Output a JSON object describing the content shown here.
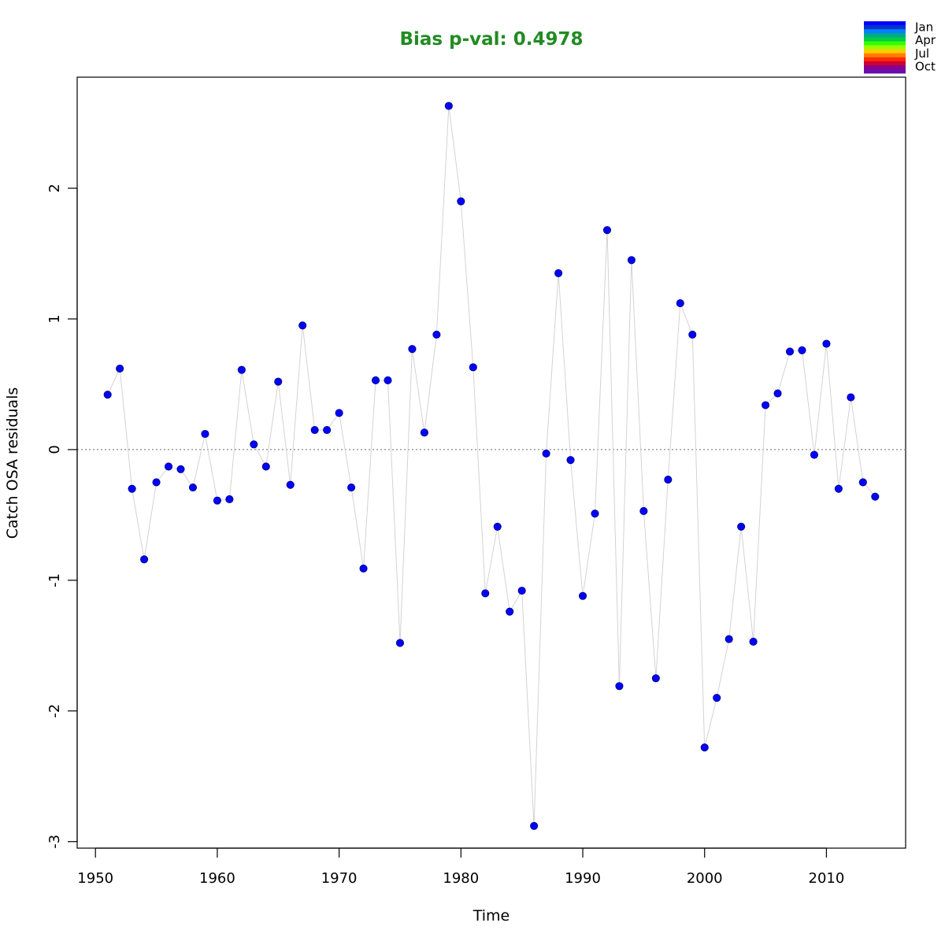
{
  "chart_data": {
    "type": "scatter",
    "title": "Bias p-val: 0.4978",
    "title_color": "#228b22",
    "xlabel": "Time",
    "ylabel": "Catch OSA residuals",
    "xlim": [
      1948.5,
      2016.5
    ],
    "ylim": [
      -3.05,
      2.85
    ],
    "x_ticks": [
      1950,
      1960,
      1970,
      1980,
      1990,
      2000,
      2010
    ],
    "y_ticks": [
      -3,
      -2,
      -1,
      0,
      1,
      2
    ],
    "reference_line": 0,
    "point_color": "#0000ff",
    "line_color": "#d3d3d3",
    "legend": {
      "placement": "top-right",
      "labels": [
        "Jan",
        "Apr",
        "Jul",
        "Oct"
      ],
      "colors": [
        "#0000ff",
        "#0033cc",
        "#0080ff",
        "#00aa88",
        "#00cc44",
        "#33ff00",
        "#99ff00",
        "#ffcc00",
        "#ff7f00",
        "#ff2a00",
        "#cc0033",
        "#8b008b",
        "#6a0dad"
      ]
    },
    "series": [
      {
        "x": [
          1951,
          1952,
          1953,
          1954,
          1955,
          1956,
          1957,
          1958,
          1959,
          1960,
          1961,
          1962,
          1963,
          1964,
          1965,
          1966,
          1967,
          1968,
          1969,
          1970,
          1971,
          1972,
          1973,
          1974,
          1975,
          1976,
          1977,
          1978,
          1979,
          1980,
          1981,
          1982,
          1983,
          1984,
          1985,
          1986,
          1987,
          1988,
          1989,
          1990,
          1991,
          1992,
          1993,
          1994,
          1995,
          1996,
          1997,
          1998,
          1999,
          2000,
          2001,
          2002,
          2003,
          2004,
          2005,
          2006,
          2007,
          2008,
          2009,
          2010,
          2011,
          2012,
          2013,
          2014
        ],
        "y": [
          0.42,
          0.62,
          -0.3,
          -0.84,
          -0.25,
          -0.13,
          -0.15,
          -0.29,
          0.12,
          -0.39,
          -0.38,
          0.61,
          0.04,
          -0.13,
          0.52,
          -0.27,
          0.95,
          0.15,
          0.15,
          0.28,
          -0.29,
          -0.91,
          0.53,
          0.53,
          -1.48,
          0.77,
          0.13,
          0.88,
          2.63,
          1.9,
          0.63,
          -1.1,
          -0.59,
          -1.24,
          -1.08,
          -2.88,
          -0.03,
          1.35,
          -0.08,
          -1.12,
          -0.49,
          1.68,
          -1.81,
          1.45,
          -0.47,
          -1.75,
          -0.23,
          1.12,
          0.88,
          -2.28,
          -1.9,
          -1.45,
          -0.59,
          -1.47,
          0.34,
          0.43,
          0.75,
          0.76,
          -0.04,
          0.81,
          -0.3,
          0.4,
          -0.25,
          -0.36
        ]
      }
    ]
  }
}
